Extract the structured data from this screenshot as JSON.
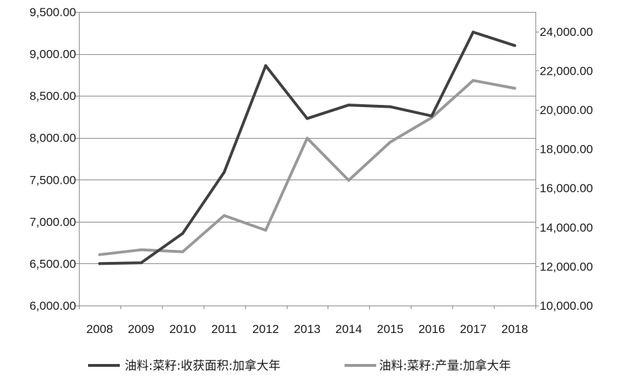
{
  "chart_data": {
    "type": "line",
    "categories": [
      "2008",
      "2009",
      "2010",
      "2011",
      "2012",
      "2013",
      "2014",
      "2015",
      "2016",
      "2017",
      "2018"
    ],
    "series": [
      {
        "name": "油料:菜籽:收获面积:加拿大年",
        "axis": "left",
        "color": "#404040",
        "values": [
          6500,
          6510,
          6860,
          7590,
          8860,
          8230,
          8390,
          8370,
          8260,
          9260,
          9100
        ]
      },
      {
        "name": "油料:菜籽:产量:加拿大年",
        "axis": "right",
        "color": "#999999",
        "values": [
          12600,
          12850,
          12750,
          14600,
          13850,
          18550,
          16400,
          18350,
          19600,
          21500,
          21100
        ]
      }
    ],
    "y_left": {
      "lim": [
        6000,
        9500
      ],
      "ticks": [
        "6,000.00",
        "6,500.00",
        "7,000.00",
        "7,500.00",
        "8,000.00",
        "8,500.00",
        "9,000.00",
        "9,500.00"
      ],
      "tick_values": [
        6000,
        6500,
        7000,
        7500,
        8000,
        8500,
        9000,
        9500
      ]
    },
    "y_right": {
      "lim": [
        10000,
        25000
      ],
      "ticks": [
        "10,000.00",
        "12,000.00",
        "14,000.00",
        "16,000.00",
        "18,000.00",
        "20,000.00",
        "22,000.00",
        "24,000.00"
      ],
      "tick_values": [
        10000,
        12000,
        14000,
        16000,
        18000,
        20000,
        22000,
        24000
      ]
    },
    "grid": true,
    "legend_position": "bottom"
  }
}
